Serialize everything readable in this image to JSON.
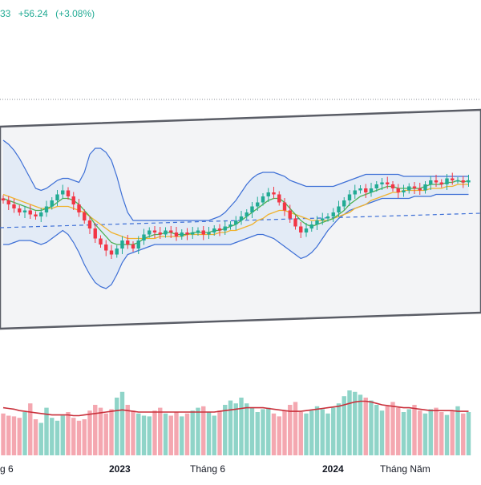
{
  "header": {
    "price_change_partial": "33",
    "change": "+56.24",
    "change_pct": "(+3.08%)",
    "change_color": "#22ab94"
  },
  "colors": {
    "up": "#22ab94",
    "down": "#f23645",
    "vol_up": "#8fd4c8",
    "vol_down": "#f4a7b0",
    "bb_line": "#3d6fd6",
    "bb_fill": "#dfe9f6",
    "ma_fast": "#4caf50",
    "ma_slow": "#f0b22e",
    "vol_ma": "#c9303b",
    "channel": "#5a5d66",
    "channel_fill": "#f3f4f6",
    "dashed": "#3d6fd6"
  },
  "x_axis": {
    "labels": [
      "g 6",
      "2023",
      "Tháng 6",
      "2024",
      "Tháng Năm"
    ],
    "bold": [
      false,
      true,
      false,
      true,
      false
    ]
  },
  "chart_data": {
    "type": "candlestick",
    "candles_close": [
      52,
      50,
      48,
      46,
      47,
      45,
      44,
      46,
      49,
      52,
      55,
      57,
      54,
      50,
      46,
      42,
      38,
      33,
      30,
      27,
      25,
      28,
      32,
      30,
      28,
      32,
      35,
      37,
      36,
      35,
      37,
      36,
      34,
      36,
      35,
      36,
      37,
      35,
      36,
      38,
      37,
      39,
      40,
      42,
      44,
      46,
      49,
      51,
      54,
      56,
      55,
      51,
      47,
      43,
      39,
      36,
      38,
      40,
      42,
      43,
      44,
      46,
      49,
      52,
      55,
      57,
      58,
      56,
      58,
      60,
      61,
      60,
      58,
      56,
      57,
      59,
      58,
      57,
      60,
      62,
      61,
      60,
      63,
      62,
      62,
      61,
      62
    ],
    "volumes": [
      58,
      55,
      54,
      52,
      60,
      72,
      50,
      45,
      66,
      52,
      48,
      55,
      60,
      52,
      48,
      50,
      62,
      70,
      66,
      58,
      64,
      80,
      88,
      70,
      62,
      58,
      55,
      54,
      62,
      66,
      58,
      55,
      60,
      54,
      58,
      62,
      66,
      68,
      60,
      55,
      62,
      70,
      76,
      72,
      80,
      72,
      66,
      60,
      64,
      66,
      58,
      54,
      62,
      70,
      74,
      60,
      58,
      62,
      68,
      64,
      58,
      66,
      72,
      82,
      90,
      88,
      84,
      80,
      76,
      70,
      62,
      68,
      74,
      66,
      60,
      64,
      70,
      62,
      58,
      64,
      66,
      60,
      56,
      62,
      68,
      58,
      60
    ],
    "ma_fast": [
      53,
      52,
      51,
      50,
      49,
      48,
      47,
      47,
      48,
      49,
      51,
      53,
      53,
      52,
      50,
      47,
      44,
      40,
      37,
      34,
      31,
      30,
      30,
      30,
      30,
      31,
      33,
      34,
      35,
      35,
      36,
      36,
      35,
      35,
      35,
      36,
      36,
      36,
      36,
      37,
      37,
      38,
      39,
      40,
      42,
      44,
      46,
      48,
      50,
      52,
      53,
      53,
      51,
      48,
      45,
      42,
      40,
      39,
      40,
      41,
      42,
      43,
      45,
      47,
      50,
      52,
      54,
      55,
      56,
      57,
      58,
      59,
      59,
      58,
      58,
      58,
      58,
      58,
      59,
      60,
      60,
      60,
      61,
      61,
      62,
      61,
      62
    ],
    "ma_slow": [
      55,
      54,
      53,
      52,
      51,
      50,
      49,
      48,
      48,
      48,
      49,
      49,
      49,
      48,
      47,
      46,
      44,
      42,
      40,
      38,
      36,
      35,
      34,
      33,
      33,
      33,
      33,
      33,
      33,
      34,
      34,
      34,
      34,
      34,
      35,
      35,
      35,
      35,
      35,
      35,
      36,
      36,
      37,
      37,
      38,
      39,
      40,
      42,
      43,
      45,
      46,
      47,
      47,
      46,
      45,
      44,
      43,
      42,
      42,
      42,
      42,
      43,
      44,
      45,
      46,
      48,
      49,
      50,
      52,
      53,
      54,
      55,
      56,
      56,
      57,
      57,
      57,
      57,
      57,
      58,
      58,
      58,
      59,
      59,
      60,
      60,
      60
    ],
    "bb_upper": [
      82,
      80,
      77,
      73,
      68,
      63,
      58,
      57,
      58,
      60,
      62,
      63,
      63,
      62,
      61,
      66,
      75,
      78,
      78,
      76,
      72,
      64,
      54,
      46,
      42,
      42,
      42,
      42,
      42,
      42,
      42,
      42,
      42,
      42,
      42,
      42,
      42,
      42,
      42,
      43,
      44,
      46,
      49,
      52,
      56,
      60,
      63,
      65,
      66,
      66,
      66,
      65,
      64,
      62,
      61,
      60,
      59,
      59,
      59,
      59,
      59,
      59,
      60,
      61,
      62,
      63,
      64,
      65,
      65,
      65,
      65,
      65,
      65,
      65,
      64,
      64,
      64,
      64,
      64,
      64,
      64,
      64,
      64,
      64,
      64,
      64,
      64
    ],
    "bb_lower": [
      30,
      30,
      31,
      32,
      32,
      32,
      31,
      30,
      31,
      33,
      35,
      37,
      35,
      31,
      26,
      20,
      15,
      11,
      9,
      8,
      10,
      15,
      21,
      25,
      26,
      27,
      28,
      29,
      30,
      30,
      30,
      30,
      30,
      30,
      30,
      30,
      30,
      30,
      30,
      30,
      30,
      30,
      30,
      31,
      32,
      33,
      34,
      35,
      35,
      34,
      33,
      31,
      29,
      27,
      25,
      23,
      24,
      26,
      29,
      33,
      37,
      40,
      43,
      45,
      47,
      48,
      49,
      50,
      51,
      52,
      53,
      53,
      53,
      53,
      53,
      53,
      54,
      54,
      54,
      54,
      55,
      55,
      55,
      55,
      55,
      55,
      55
    ],
    "vol_ma": [
      66,
      65,
      64,
      62,
      61,
      60,
      59,
      58,
      57,
      56,
      56,
      56,
      56,
      55,
      55,
      56,
      57,
      58,
      59,
      60,
      61,
      62,
      63,
      62,
      61,
      60,
      60,
      60,
      60,
      60,
      60,
      60,
      60,
      60,
      60,
      60,
      60,
      60,
      60,
      60,
      61,
      62,
      63,
      64,
      65,
      66,
      66,
      66,
      66,
      65,
      64,
      63,
      62,
      61,
      61,
      61,
      62,
      63,
      64,
      65,
      66,
      67,
      68,
      70,
      72,
      74,
      75,
      75,
      74,
      72,
      70,
      69,
      68,
      67,
      66,
      66,
      65,
      64,
      63,
      62,
      62,
      62,
      62,
      62,
      61,
      61,
      61
    ]
  }
}
